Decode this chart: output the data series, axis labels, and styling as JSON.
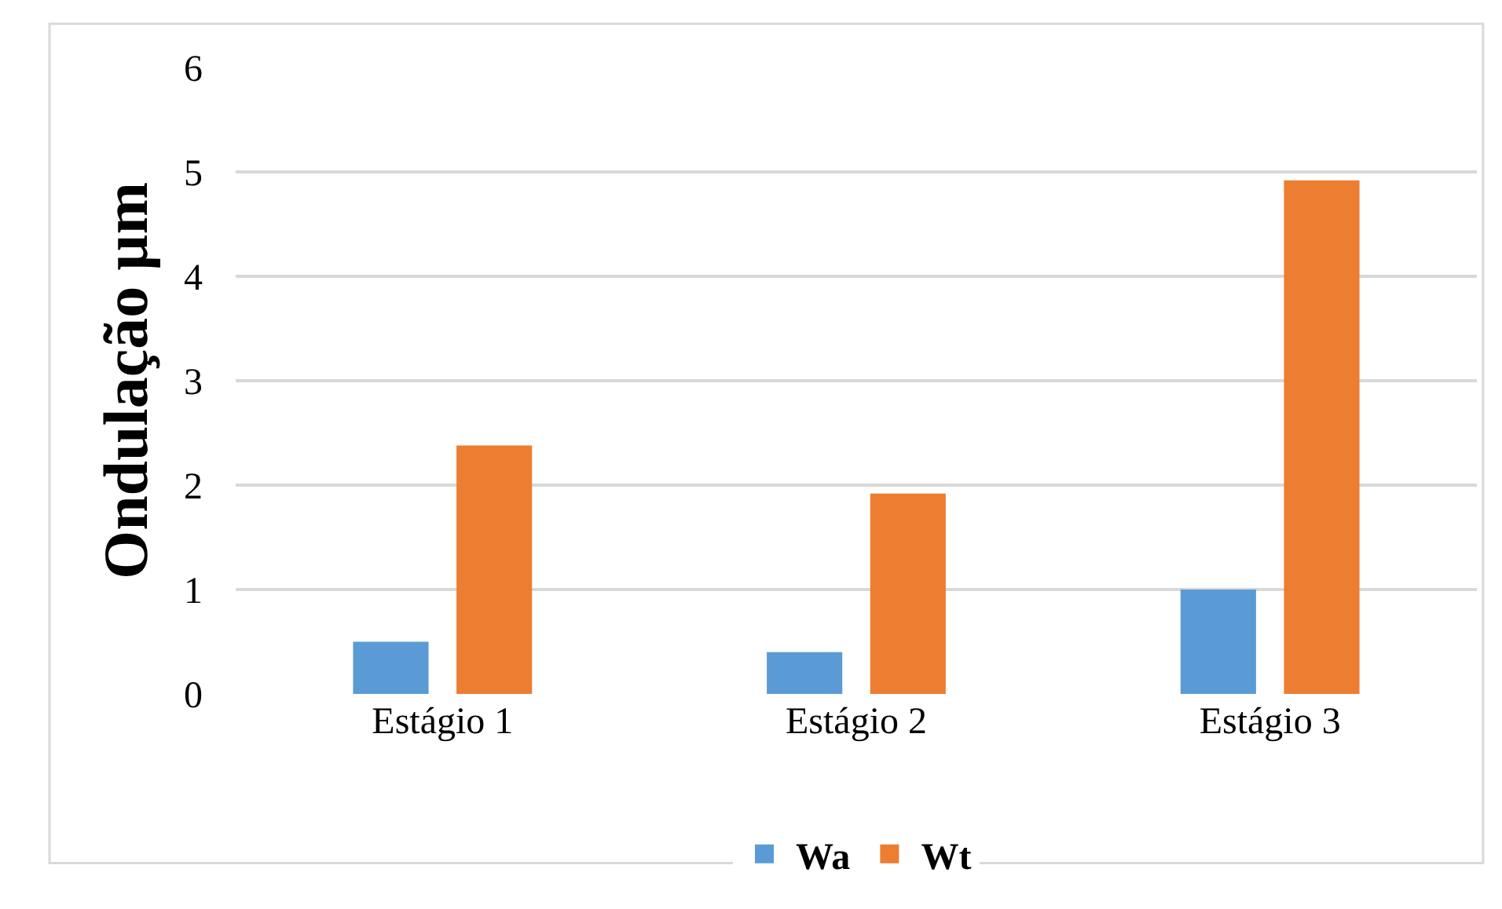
{
  "chart_data": {
    "type": "bar",
    "ylabel": "Ondulação µm",
    "categories": [
      "Estágio 1",
      "Estágio 2",
      "Estágio 3"
    ],
    "series": [
      {
        "name": "Wa",
        "color": "#5b9bd5",
        "values": [
          0.5,
          0.4,
          1.0
        ]
      },
      {
        "name": "Wt",
        "color": "#ed7d31",
        "values": [
          2.38,
          1.92,
          4.92
        ]
      }
    ],
    "ylim": [
      0,
      6
    ],
    "yticks": [
      0,
      1,
      2,
      3,
      4,
      5,
      6
    ],
    "grid": "y",
    "legend": "bottom"
  }
}
